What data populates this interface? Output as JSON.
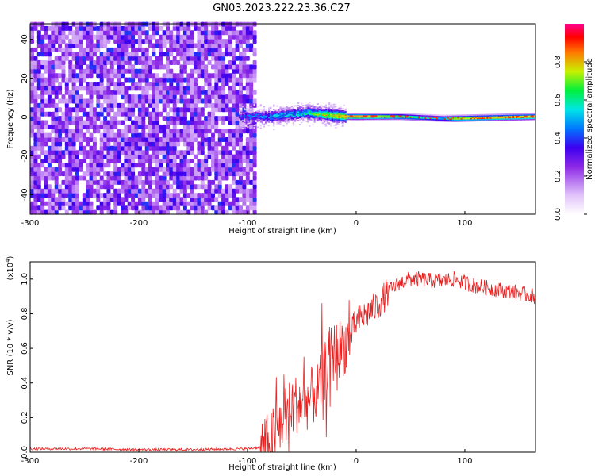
{
  "title": "GN03.2023.222.23.36.C27",
  "chart_data": [
    {
      "type": "heatmap",
      "xlabel": "Height of straight line (km)",
      "ylabel": "Frequency (Hz)",
      "xlim": [
        -300,
        165
      ],
      "ylim": [
        -50,
        48
      ],
      "xticks": [
        -300,
        -200,
        -100,
        0,
        100
      ],
      "yticks": [
        -40,
        -20,
        0,
        20,
        40
      ],
      "colorbar": {
        "label": "Normalized spectral amplitude",
        "range": [
          0,
          1
        ],
        "ticks": [
          "0.0",
          "0.2",
          "0.4",
          "0.6",
          "0.8"
        ],
        "colormap": [
          "#ffffff",
          "#8a2be2",
          "#0000ff",
          "#00ffff",
          "#00ff00",
          "#ffff00",
          "#ff0000",
          "#ff0090"
        ]
      },
      "noise_region_x": [
        -300,
        -95
      ],
      "signal_band": {
        "x": [
          -108,
          -80,
          -60,
          -45,
          -30,
          -10,
          0,
          40,
          80,
          90,
          165
        ],
        "freq_center": [
          0,
          0,
          1,
          2,
          1,
          0,
          0,
          0,
          -1,
          -1,
          0
        ],
        "peak_amplitude": [
          0.35,
          0.45,
          0.5,
          0.55,
          0.75,
          0.85,
          0.9,
          0.7,
          0.5,
          0.75,
          0.85
        ]
      }
    },
    {
      "type": "line",
      "xlabel": "Height of straight line (km)",
      "ylabel": "SNR (10 * v/v)",
      "y_multiplier": "(x10",
      "y_multiplier_exp": "4",
      "y_multiplier_close": ")",
      "xlim": [
        -300,
        165
      ],
      "ylim": [
        0,
        1.1
      ],
      "xticks": [
        -300,
        -200,
        -100,
        0,
        100
      ],
      "yticks": [
        "0.0",
        "0.2",
        "0.4",
        "0.6",
        "0.8",
        "1.0"
      ],
      "color": "#e82020",
      "series": [
        {
          "x": [
            -300,
            -250,
            -200,
            -150,
            -100,
            -85,
            -75,
            -65,
            -55,
            -45,
            -35,
            -30,
            -25,
            -20,
            -15,
            -10,
            -5,
            0,
            10,
            20,
            30,
            40,
            50,
            60,
            70,
            80,
            90,
            100,
            110,
            120,
            130,
            140,
            150,
            165
          ],
          "y": [
            0.02,
            0.02,
            0.015,
            0.015,
            0.02,
            0.03,
            0.1,
            0.22,
            0.28,
            0.3,
            0.35,
            0.45,
            0.55,
            0.58,
            0.6,
            0.62,
            0.68,
            0.75,
            0.8,
            0.85,
            0.93,
            0.98,
            1.0,
            1.0,
            0.99,
            0.99,
            1.0,
            0.98,
            0.96,
            0.95,
            0.94,
            0.93,
            0.92,
            0.9
          ]
        }
      ]
    }
  ]
}
